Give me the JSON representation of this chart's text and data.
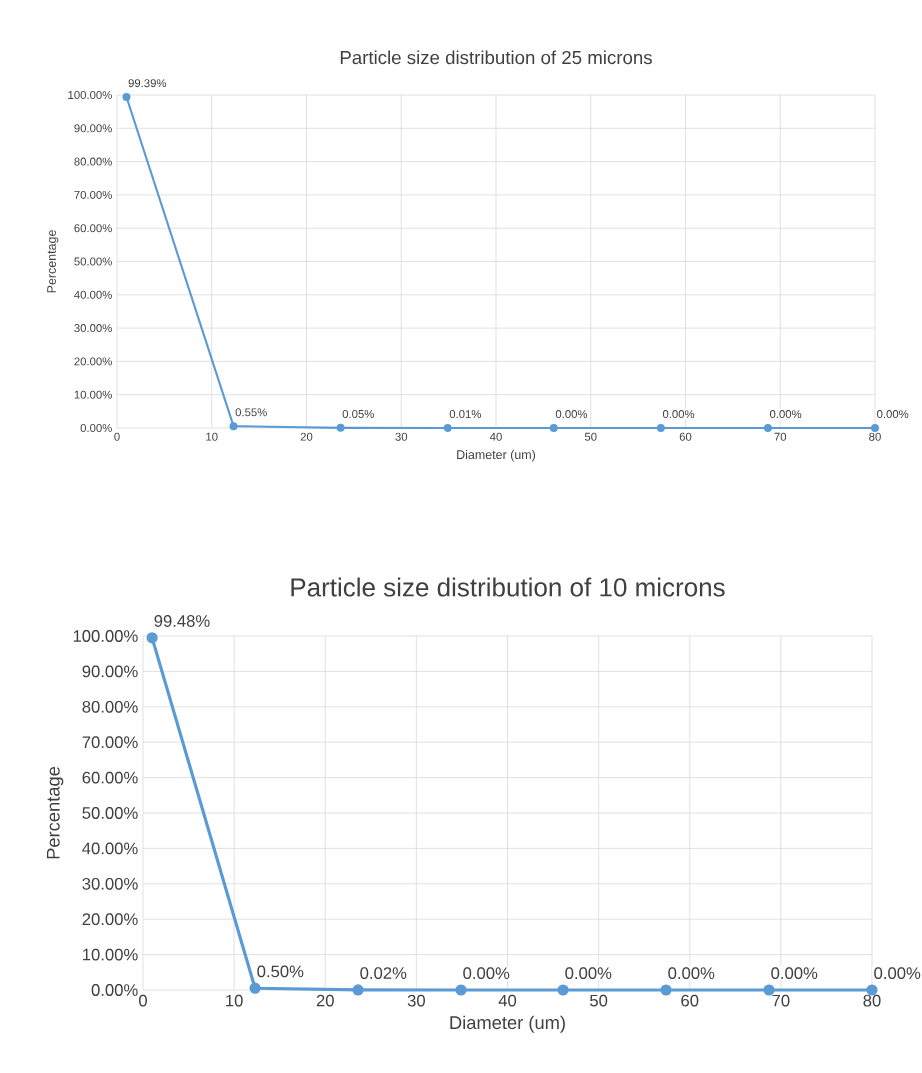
{
  "chart_data": [
    {
      "type": "line",
      "title": "Particle size distribution of 25 microns",
      "xlabel": "Diameter (um)",
      "ylabel": "Percentage",
      "x": [
        1,
        12.3,
        23.6,
        34.9,
        46.1,
        57.4,
        68.7,
        80
      ],
      "series": [
        {
          "color": "#5b9bd5",
          "values": [
            99.39,
            0.55,
            0.05,
            0.01,
            0,
            0,
            0,
            0
          ],
          "value_labels": [
            "99.39%",
            "0.55%",
            "0.05%",
            "0.01%",
            "0.00%",
            "0.00%",
            "0.00%",
            "0.00%"
          ]
        }
      ],
      "xlim": [
        0,
        80
      ],
      "xticks": [
        0,
        10,
        20,
        30,
        40,
        50,
        60,
        70,
        80
      ],
      "ylim": [
        0,
        100
      ],
      "yticks": [
        {
          "value": 0,
          "label": "0.00%"
        },
        {
          "value": 10,
          "label": "10.00%"
        },
        {
          "value": 20,
          "label": "20.00%"
        },
        {
          "value": 30,
          "label": "30.00%"
        },
        {
          "value": 40,
          "label": "40.00%"
        },
        {
          "value": 50,
          "label": "50.00%"
        },
        {
          "value": 60,
          "label": "60.00%"
        },
        {
          "value": 70,
          "label": "70.00%"
        },
        {
          "value": 80,
          "label": "80.00%"
        },
        {
          "value": 90,
          "label": "90.00%"
        },
        {
          "value": 100,
          "label": "100.00%"
        }
      ],
      "grid": true,
      "marker": "circle",
      "line_style": "solid"
    },
    {
      "type": "line",
      "title": "Particle size distribution of 10 microns",
      "xlabel": "Diameter (um)",
      "ylabel": "Percentage",
      "x": [
        1,
        12.3,
        23.6,
        34.9,
        46.1,
        57.4,
        68.7,
        80
      ],
      "series": [
        {
          "color": "#5b9bd5",
          "values": [
            99.48,
            0.5,
            0.02,
            0,
            0,
            0,
            0,
            0
          ],
          "value_labels": [
            "99.48%",
            "0.50%",
            "0.02%",
            "0.00%",
            "0.00%",
            "0.00%",
            "0.00%",
            "0.00%"
          ]
        }
      ],
      "xlim": [
        0,
        80
      ],
      "xticks": [
        0,
        10,
        20,
        30,
        40,
        50,
        60,
        70,
        80
      ],
      "ylim": [
        0,
        100
      ],
      "yticks": [
        {
          "value": 0,
          "label": "0.00%"
        },
        {
          "value": 10,
          "label": "10.00%"
        },
        {
          "value": 20,
          "label": "20.00%"
        },
        {
          "value": 30,
          "label": "30.00%"
        },
        {
          "value": 40,
          "label": "40.00%"
        },
        {
          "value": 50,
          "label": "50.00%"
        },
        {
          "value": 60,
          "label": "60.00%"
        },
        {
          "value": 70,
          "label": "70.00%"
        },
        {
          "value": 80,
          "label": "80.00%"
        },
        {
          "value": 90,
          "label": "90.00%"
        },
        {
          "value": 100,
          "label": "100.00%"
        }
      ],
      "grid": true,
      "marker": "circle",
      "line_style": "solid"
    }
  ]
}
